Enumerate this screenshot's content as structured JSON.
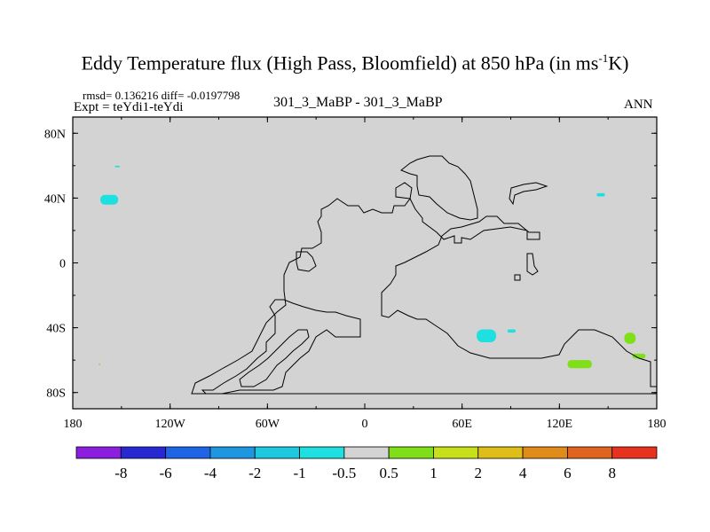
{
  "title": {
    "main": "Eddy Temperature flux (High Pass, Bloomfield) at 850 hPa (in ms",
    "sup": "-1",
    "tail": "K)"
  },
  "subtitle": {
    "stats": "rmsd= 0.136216 diff= -0.0197798",
    "expt": "Expt = teYdi1-teYdi",
    "center": "301_3_MaBP - 301_3_MaBP",
    "right": "ANN"
  },
  "chart_data": {
    "type": "heatmap",
    "map": "global lat-lon difference map with coastline outlines",
    "xlim": [
      -180,
      180
    ],
    "ylim": [
      -90,
      90
    ],
    "x_ticks": [
      {
        "value": -180,
        "label": "180"
      },
      {
        "value": -120,
        "label": "120W"
      },
      {
        "value": -60,
        "label": "60W"
      },
      {
        "value": 0,
        "label": "0"
      },
      {
        "value": 60,
        "label": "60E"
      },
      {
        "value": 120,
        "label": "120E"
      },
      {
        "value": 180,
        "label": "180"
      }
    ],
    "y_ticks": [
      {
        "value": 80,
        "label": "80N"
      },
      {
        "value": 40,
        "label": "40N"
      },
      {
        "value": 0,
        "label": "0"
      },
      {
        "value": -40,
        "label": "40S"
      },
      {
        "value": -80,
        "label": "80S"
      }
    ],
    "background_value_range": [
      -0.5,
      0.5
    ],
    "background_color": "#d3d3d3",
    "anomaly_regions": [
      {
        "lon": [
          -163,
          -152
        ],
        "lat": [
          36,
          42
        ],
        "value_range": [
          -1,
          -0.5
        ],
        "color": "#1ee0e0"
      },
      {
        "lon": [
          -154,
          -151
        ],
        "lat": [
          59,
          60
        ],
        "value_range": [
          -1,
          -0.5
        ],
        "color": "#1ee0e0"
      },
      {
        "lon": [
          143,
          148
        ],
        "lat": [
          41,
          43
        ],
        "value_range": [
          -1,
          -0.5
        ],
        "color": "#1ee0e0"
      },
      {
        "lon": [
          69,
          81
        ],
        "lat": [
          -49,
          -41
        ],
        "value_range": [
          -1,
          -0.5
        ],
        "color": "#1ee0e0"
      },
      {
        "lon": [
          88,
          93
        ],
        "lat": [
          -43,
          -41
        ],
        "value_range": [
          -1,
          -0.5
        ],
        "color": "#1ee0e0"
      },
      {
        "lon": [
          125,
          140
        ],
        "lat": [
          -65,
          -60
        ],
        "value_range": [
          0.5,
          1
        ],
        "color": "#7fe01a"
      },
      {
        "lon": [
          160,
          167
        ],
        "lat": [
          -50,
          -43
        ],
        "value_range": [
          0.5,
          1
        ],
        "color": "#7fe01a"
      },
      {
        "lon": [
          165,
          173
        ],
        "lat": [
          -59,
          -56
        ],
        "value_range": [
          0.5,
          1
        ],
        "color": "#7fe01a"
      },
      {
        "lon": [
          -164,
          -163
        ],
        "lat": [
          -63,
          -62
        ],
        "value_range": [
          0.5,
          1
        ],
        "color": "#7fe01a"
      }
    ],
    "colorbar": {
      "levels": [
        "-8",
        "-6",
        "-4",
        "-2",
        "-1",
        "-0.5",
        "0.5",
        "1",
        "2",
        "4",
        "6",
        "8"
      ],
      "colors": [
        "#8c1ee0",
        "#2828d2",
        "#1e64e6",
        "#1e96e0",
        "#1ec8e0",
        "#1ee0e0",
        "#d3d3d3",
        "#7fe01a",
        "#c8e01a",
        "#e0be1a",
        "#e08c1a",
        "#e0641e",
        "#e6321e"
      ]
    }
  }
}
